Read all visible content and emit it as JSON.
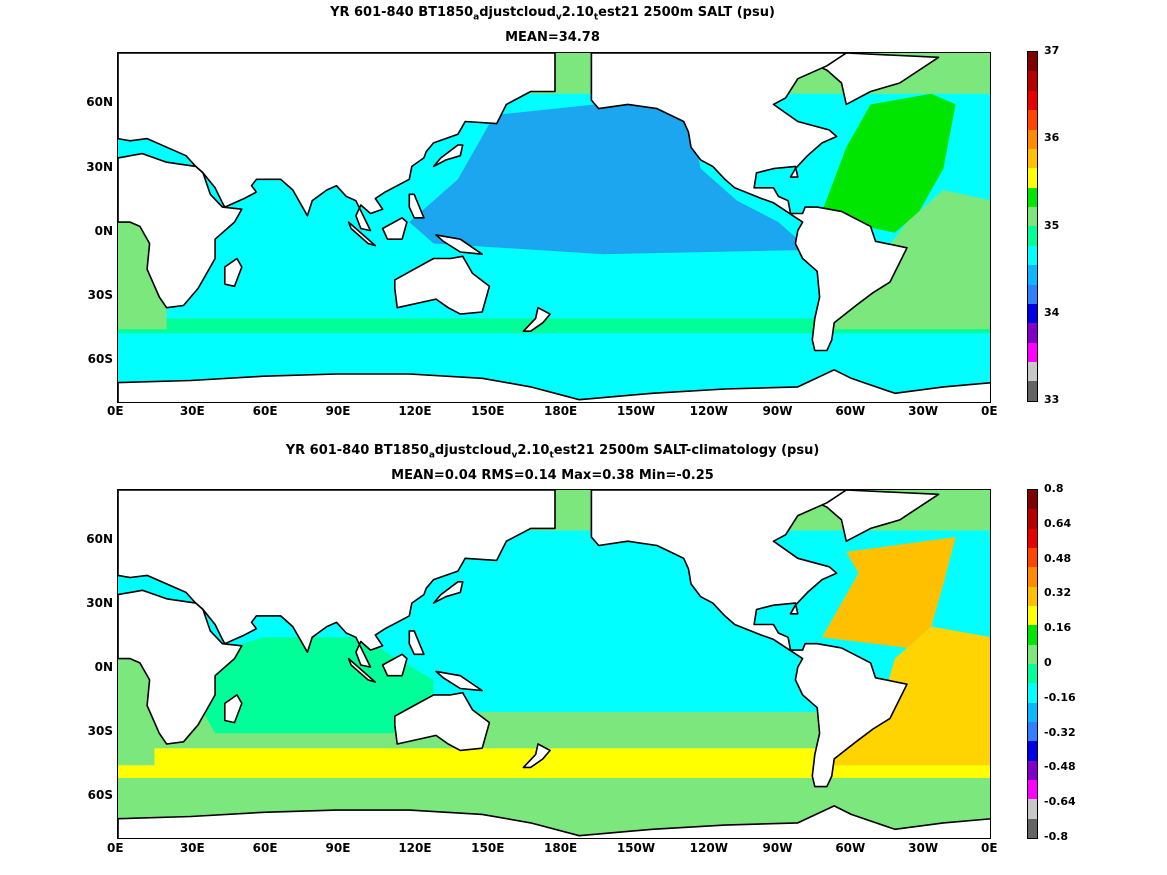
{
  "chart_data": [
    {
      "type": "heatmap",
      "title_parts": [
        "YR 601-840 BT1850",
        "a",
        "djustcloud",
        "v",
        "2.10",
        "t",
        "est21 2500m SALT (psu)"
      ],
      "subtitle": "MEAN=34.78",
      "x_ticks": [
        "0E",
        "30E",
        "60E",
        "90E",
        "120E",
        "150E",
        "180E",
        "150W",
        "120W",
        "90W",
        "60W",
        "30W",
        "0E"
      ],
      "y_ticks": [
        "60N",
        "30N",
        "0N",
        "30S",
        "60S"
      ],
      "colorbar": {
        "labels": [
          "37",
          "36",
          "35",
          "34",
          "33"
        ],
        "colors": [
          "#7f0000",
          "#b50000",
          "#e60000",
          "#ff4500",
          "#ff8c00",
          "#ffc000",
          "#ffff00",
          "#00e600",
          "#7ce77c",
          "#00ff99",
          "#00ffff",
          "#0bb7ff",
          "#2f7fff",
          "#0000e6",
          "#8000c8",
          "#ff00ff",
          "#c8c8c8",
          "#646464"
        ]
      },
      "field_colors": {
        "land": "#ffffff",
        "pacific_north": "#1ca6f0",
        "pacific_south": "#00ffff",
        "indian": "#00ffff",
        "southern_band": "#00ff99",
        "antarctic": "#00ffff",
        "atlantic_north": "#00e600",
        "atlantic_south": "#7ce77c",
        "arctic": "#7ce77c"
      }
    },
    {
      "type": "heatmap",
      "title_parts": [
        "YR 601-840 BT1850",
        "a",
        "djustcloud",
        "v",
        "2.10",
        "t",
        "est21 2500m SALT-climatology (psu)"
      ],
      "subtitle": "MEAN=0.04   RMS=0.14   Max=0.38   Min=-0.25",
      "x_ticks": [
        "0E",
        "30E",
        "60E",
        "90E",
        "120E",
        "150E",
        "180E",
        "150W",
        "120W",
        "90W",
        "60W",
        "30W",
        "0E"
      ],
      "y_ticks": [
        "60N",
        "30N",
        "0N",
        "30S",
        "60S"
      ],
      "colorbar": {
        "labels": [
          "0.8",
          "0.64",
          "0.48",
          "0.32",
          "0.16",
          "0",
          "-0.16",
          "-0.32",
          "-0.48",
          "-0.64",
          "-0.8"
        ],
        "colors": [
          "#7f0000",
          "#b50000",
          "#e60000",
          "#ff4500",
          "#ff8c00",
          "#ffc000",
          "#ffff00",
          "#00e600",
          "#7ce77c",
          "#00ff99",
          "#00ffff",
          "#0bb7ff",
          "#2f7fff",
          "#0000e6",
          "#8000c8",
          "#ff00ff",
          "#c8c8c8",
          "#646464"
        ]
      },
      "field_colors": {
        "land": "#ffffff",
        "pacific": "#00ffff",
        "southern_band": "#ffff00",
        "atlantic": "#ffd400",
        "atlantic_north": "#ffc000",
        "indian": "#00ff99",
        "subtropical": "#7ce77c",
        "antarctic": "#7ce77c"
      }
    }
  ]
}
